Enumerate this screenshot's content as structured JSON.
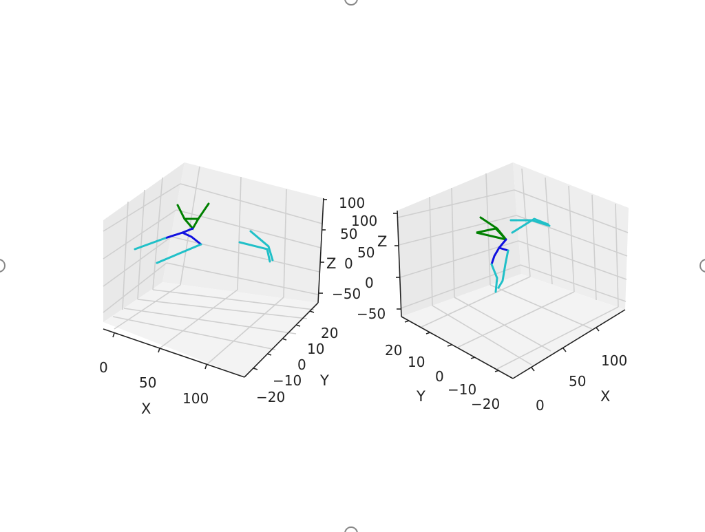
{
  "colors": {
    "green": "#008000",
    "blue": "#1010e0",
    "cyan": "#20c0c8"
  },
  "chart_data": [
    {
      "type": "line3d",
      "xlabel": "X",
      "ylabel": "Y",
      "zlabel": "Z",
      "xticks": [
        "0",
        "50",
        "100"
      ],
      "yticks": [
        "−20",
        "−10",
        "0",
        "10",
        "20"
      ],
      "zticks": [
        "−50",
        "0",
        "50",
        "100"
      ],
      "xlim": [
        -15,
        155
      ],
      "ylim": [
        -25,
        25
      ],
      "zlim": [
        -65,
        110
      ],
      "grid": true
    },
    {
      "type": "line3d",
      "xlabel": "X",
      "ylabel": "Y",
      "zlabel": "Z",
      "xticks": [
        "0",
        "50",
        "100"
      ],
      "yticks": [
        "−20",
        "−10",
        "0",
        "10",
        "20"
      ],
      "zticks": [
        "−50",
        "0",
        "50",
        "100"
      ],
      "xlim": [
        -15,
        155
      ],
      "ylim": [
        -25,
        25
      ],
      "zlim": [
        -65,
        110
      ],
      "grid": true
    }
  ]
}
